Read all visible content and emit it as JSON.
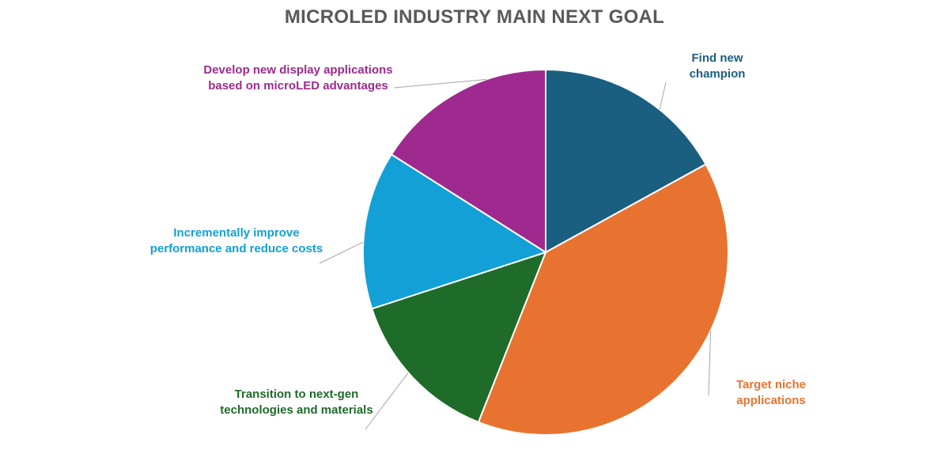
{
  "chart_data": {
    "type": "pie",
    "title": "MICROLED INDUSTRY MAIN NEXT GOAL",
    "slices": [
      {
        "label": "Find new champion",
        "value": 17,
        "color": "#1a5f80"
      },
      {
        "label": "Target niche applications",
        "value": 39,
        "color": "#e87330"
      },
      {
        "label": "Transition  to next-gen technologies and materials",
        "value": 14,
        "color": "#1e6b2a"
      },
      {
        "label": "Incrementally improve performance and reduce costs",
        "value": 14,
        "color": "#12a0d7"
      },
      {
        "label": "Develop new display applications based on microLED advantages",
        "value": 16,
        "color": "#9e2a8f"
      }
    ]
  }
}
